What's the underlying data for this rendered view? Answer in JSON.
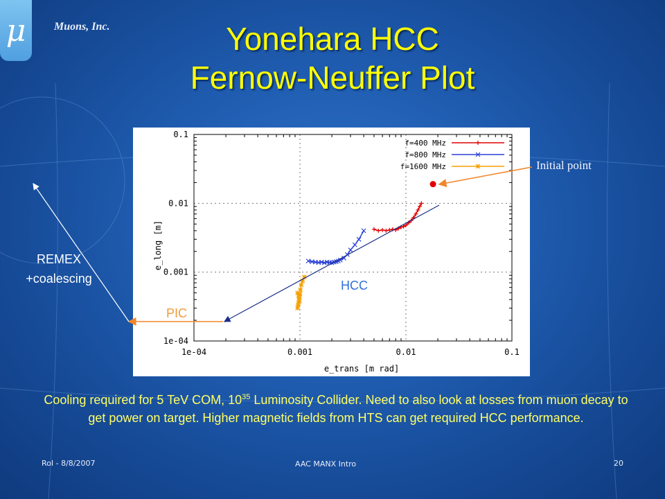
{
  "company": "Muons, Inc.",
  "logo_glyph": "μ",
  "title_line1": "Yonehara HCC",
  "title_line2": "Fernow-Neuffer Plot",
  "annotations": {
    "initial_point": "Initial point",
    "remex_line1": "REMEX",
    "remex_line2": "+coalescing",
    "pic": "PIC",
    "hcc": "HCC"
  },
  "caption": {
    "part1": "Cooling required for 5 TeV COM, 10",
    "exponent": "35",
    "part2": " Luminosity Collider.                     Need to also look at losses from muon decay to get power on target.  Higher magnetic fields from HTS can get required HCC performance."
  },
  "footer": {
    "left": "RoI - 8/8/2007",
    "center": "AAC MANX Intro",
    "right": "20"
  },
  "colors": {
    "title": "#ffff00",
    "caption": "#ffff66",
    "series_400": "#e00000",
    "series_800": "#2a3fd8",
    "series_1600": "#f5a000",
    "pic_label": "#f29a3a",
    "hcc_label": "#2e6fd8"
  },
  "chart_data": {
    "type": "scatter",
    "xlabel": "e_trans [m rad]",
    "ylabel": "e_long [m]",
    "x_scale": "log",
    "y_scale": "log",
    "xlim": [
      0.0001,
      0.1
    ],
    "ylim": [
      0.0001,
      0.1
    ],
    "x_ticks": [
      "1e-04",
      "0.001",
      "0.01",
      "0.1"
    ],
    "y_ticks": [
      "1e-04",
      "0.001",
      "0.01",
      "0.1"
    ],
    "grid": true,
    "legend_position": "top-right",
    "series": [
      {
        "name": "f=400 MHz",
        "marker": "+",
        "color": "#e00000",
        "x": [
          0.005,
          0.0055,
          0.006,
          0.0065,
          0.007,
          0.0075,
          0.008,
          0.0085,
          0.009,
          0.0095,
          0.01,
          0.0106,
          0.0112,
          0.0118,
          0.0124,
          0.013,
          0.0135,
          0.014
        ],
        "y": [
          0.0042,
          0.004,
          0.0041,
          0.004,
          0.0041,
          0.0042,
          0.0041,
          0.0043,
          0.0045,
          0.0046,
          0.0048,
          0.0052,
          0.0056,
          0.0062,
          0.007,
          0.008,
          0.009,
          0.01
        ]
      },
      {
        "name": "f=800 MHz",
        "marker": "x",
        "color": "#2a3fd8",
        "x": [
          0.0012,
          0.0013,
          0.0014,
          0.0015,
          0.0016,
          0.0017,
          0.0018,
          0.0019,
          0.002,
          0.0021,
          0.0022,
          0.0023,
          0.0024,
          0.0026,
          0.0028,
          0.003,
          0.0033,
          0.0036,
          0.004
        ],
        "y": [
          0.00145,
          0.00142,
          0.0014,
          0.00138,
          0.0014,
          0.00137,
          0.0014,
          0.00138,
          0.00137,
          0.0014,
          0.00142,
          0.00145,
          0.0015,
          0.0016,
          0.0018,
          0.0021,
          0.0025,
          0.003,
          0.004
        ]
      },
      {
        "name": "f=1600 MHz",
        "marker": "*",
        "color": "#f5a000",
        "x": [
          0.00095,
          0.00096,
          0.00097,
          0.00098,
          0.00099,
          0.001,
          0.00095,
          0.00097,
          0.00099,
          0.00101,
          0.00103,
          0.00106,
          0.0011
        ],
        "y": [
          0.0003,
          0.00033,
          0.00036,
          0.0004,
          0.00044,
          0.00048,
          0.0005,
          0.00045,
          0.00038,
          0.00055,
          0.00065,
          0.00075,
          0.00085
        ]
      }
    ],
    "initial_point": {
      "x": 0.018,
      "y": 0.019,
      "color": "#e00000"
    }
  }
}
